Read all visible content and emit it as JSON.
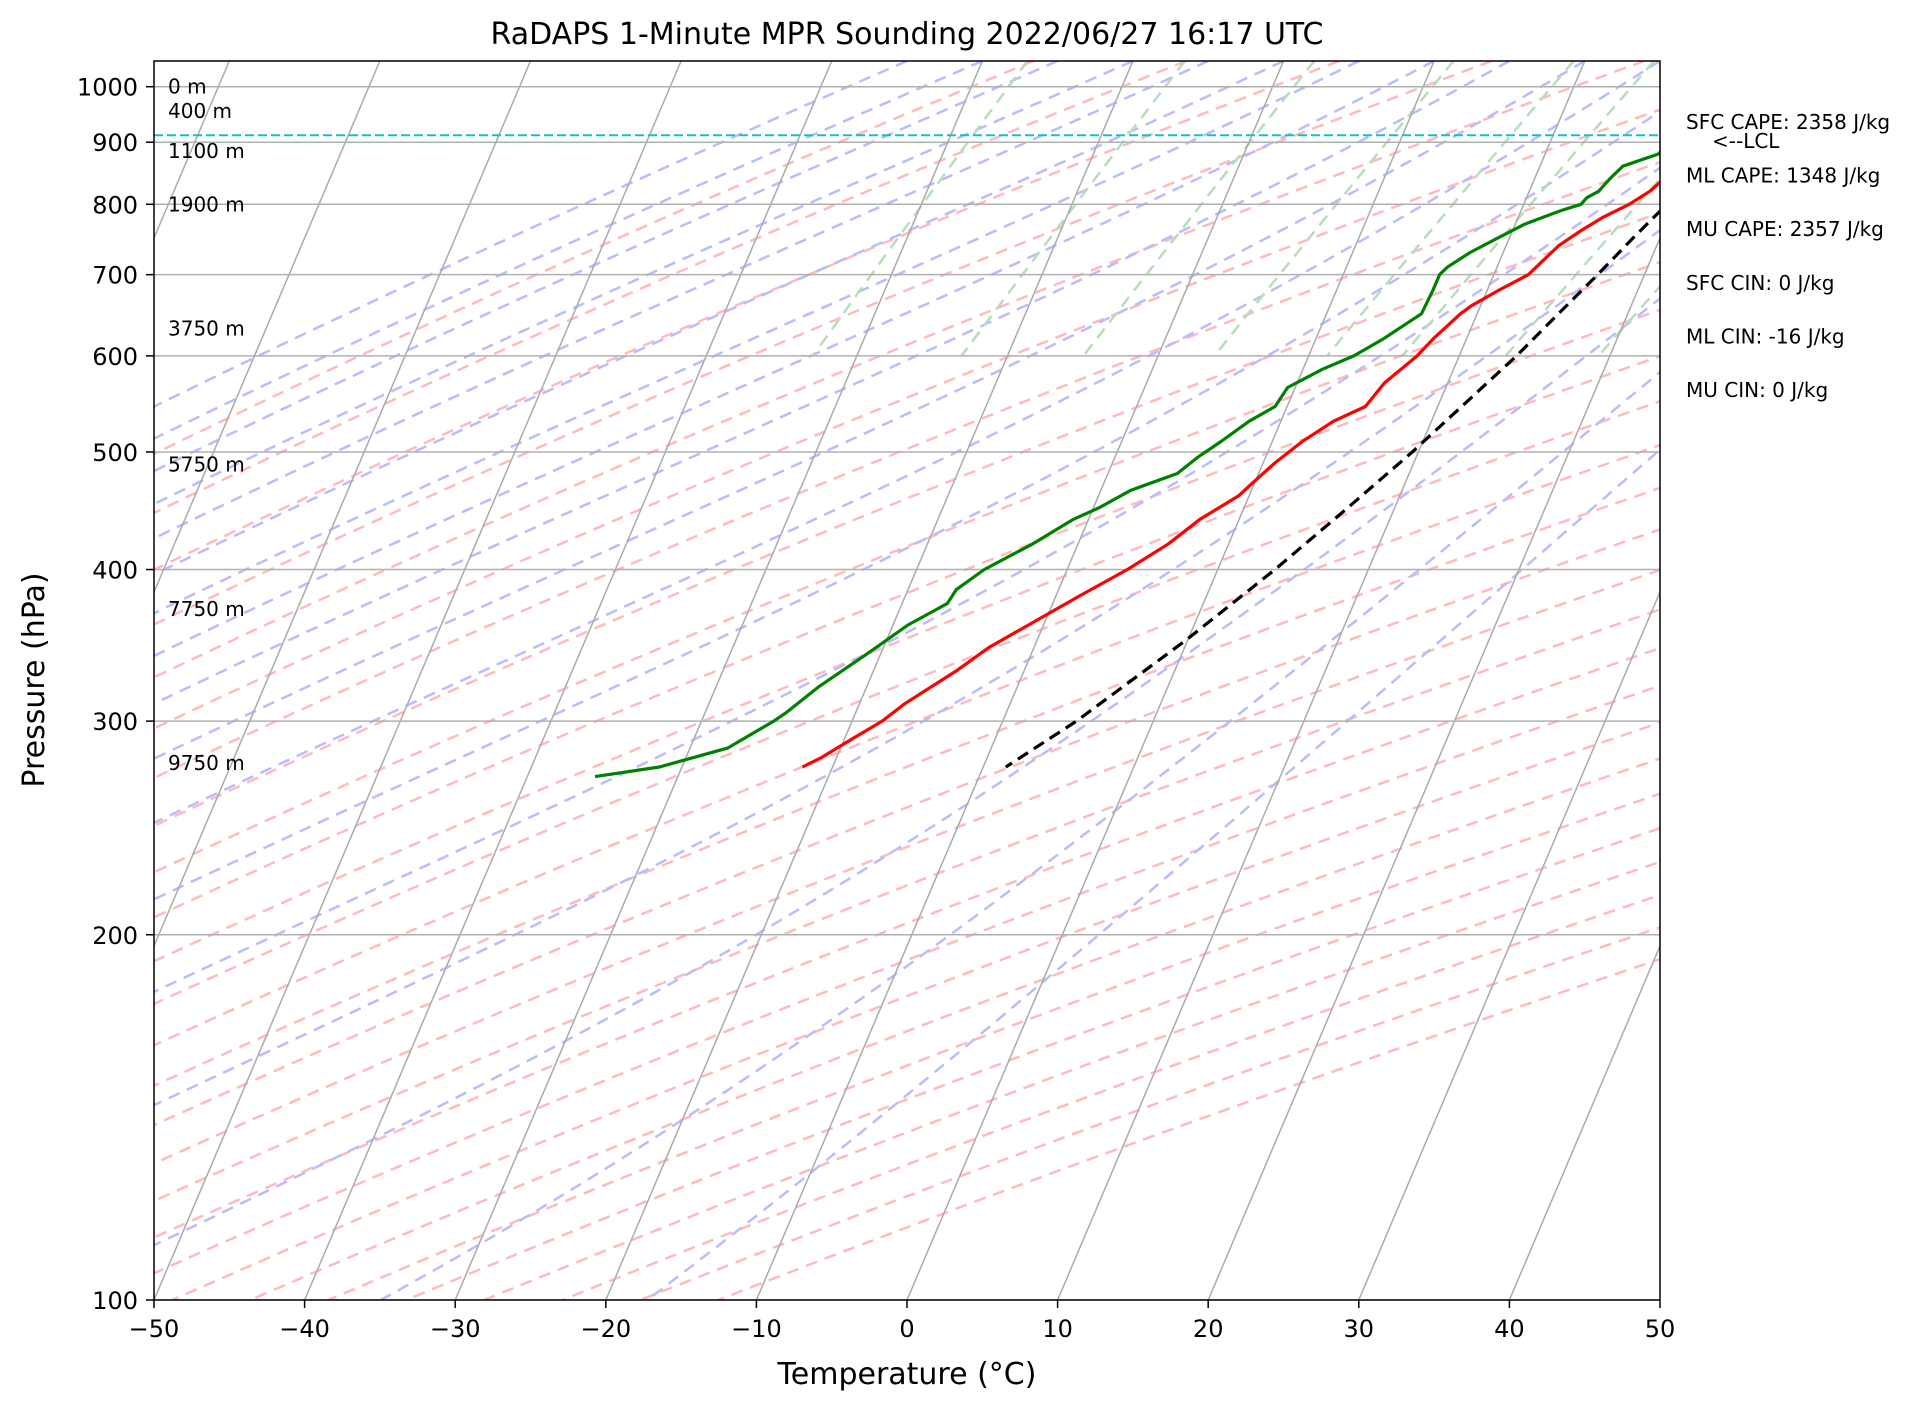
{
  "chart_data": {
    "type": "skew-t",
    "title": "RaDAPS 1-Minute MPR Sounding 2022/06/27 16:17 UTC",
    "xlabel": "Temperature (°C)",
    "ylabel": "Pressure (hPa)",
    "xlim": [
      -50,
      50
    ],
    "ylim": [
      1050,
      100
    ],
    "x_ticks": [
      -50,
      -40,
      -30,
      -20,
      -10,
      0,
      10,
      20,
      30,
      40,
      50
    ],
    "y_ticks": [
      100,
      200,
      300,
      400,
      500,
      600,
      700,
      800,
      900,
      1000
    ],
    "grid": true,
    "series": [
      {
        "color": "#ff0000",
        "points": [
          [
            1000,
            28.2
          ],
          [
            995,
            25.5
          ],
          [
            990,
            23.8
          ],
          [
            980,
            22.8
          ],
          [
            960,
            22.3
          ],
          [
            940,
            22.0
          ],
          [
            920,
            21.6
          ],
          [
            900,
            21.0
          ],
          [
            880,
            20.0
          ],
          [
            860,
            19.3
          ],
          [
            840,
            18.6
          ],
          [
            820,
            18.0
          ],
          [
            800,
            17.0
          ],
          [
            780,
            15.6
          ],
          [
            760,
            14.5
          ],
          [
            740,
            13.5
          ],
          [
            720,
            12.9
          ],
          [
            700,
            12.3
          ],
          [
            680,
            10.8
          ],
          [
            660,
            9.4
          ],
          [
            650,
            8.9
          ],
          [
            620,
            7.8
          ],
          [
            600,
            7.2
          ],
          [
            570,
            5.8
          ],
          [
            545,
            5.2
          ],
          [
            530,
            3.5
          ],
          [
            510,
            2.0
          ],
          [
            490,
            0.8
          ],
          [
            470,
            -0.2
          ],
          [
            460,
            -0.7
          ],
          [
            440,
            -2.6
          ],
          [
            420,
            -4.0
          ],
          [
            400,
            -6.0
          ],
          [
            380,
            -8.5
          ],
          [
            360,
            -11.0
          ],
          [
            345,
            -13.0
          ],
          [
            330,
            -14.5
          ],
          [
            310,
            -17.0
          ],
          [
            300,
            -18.0
          ],
          [
            290,
            -19.5
          ],
          [
            280,
            -21.0
          ],
          [
            275,
            -22.0
          ]
        ]
      },
      {
        "color": "#008000",
        "points": [
          [
            1000,
            22.2
          ],
          [
            995,
            20.6
          ],
          [
            990,
            20.3
          ],
          [
            980,
            20.4
          ],
          [
            970,
            21.0
          ],
          [
            960,
            21.2
          ],
          [
            950,
            20.4
          ],
          [
            940,
            19.7
          ],
          [
            920,
            19.0
          ],
          [
            910,
            18.2
          ],
          [
            900,
            18.0
          ],
          [
            880,
            17.5
          ],
          [
            860,
            15.5
          ],
          [
            840,
            15.0
          ],
          [
            830,
            14.8
          ],
          [
            820,
            14.6
          ],
          [
            810,
            14.0
          ],
          [
            800,
            13.8
          ],
          [
            790,
            12.6
          ],
          [
            770,
            10.6
          ],
          [
            750,
            9.2
          ],
          [
            730,
            7.8
          ],
          [
            710,
            6.7
          ],
          [
            700,
            6.4
          ],
          [
            680,
            6.4
          ],
          [
            650,
            6.3
          ],
          [
            620,
            4.5
          ],
          [
            600,
            3.0
          ],
          [
            585,
            1.3
          ],
          [
            565,
            -0.5
          ],
          [
            545,
            -0.8
          ],
          [
            530,
            -2.1
          ],
          [
            510,
            -3.4
          ],
          [
            495,
            -4.5
          ],
          [
            480,
            -5.4
          ],
          [
            465,
            -8.0
          ],
          [
            450,
            -9.6
          ],
          [
            440,
            -11.0
          ],
          [
            420,
            -13.0
          ],
          [
            400,
            -15.5
          ],
          [
            385,
            -16.8
          ],
          [
            375,
            -17.0
          ],
          [
            360,
            -19.0
          ],
          [
            340,
            -21.0
          ],
          [
            320,
            -23.2
          ],
          [
            305,
            -24.6
          ],
          [
            300,
            -25.2
          ],
          [
            285,
            -27.5
          ],
          [
            275,
            -31.5
          ],
          [
            270,
            -35.5
          ]
        ]
      },
      {
        "color": "#000000",
        "dashed": true,
        "points": [
          [
            1000,
            28.2
          ],
          [
            960,
            25.3
          ],
          [
            920,
            22.5
          ],
          [
            910,
            21.9
          ],
          [
            880,
            21.3
          ],
          [
            850,
            20.6
          ],
          [
            800,
            19.5
          ],
          [
            750,
            18.2
          ],
          [
            700,
            16.9
          ],
          [
            650,
            15.4
          ],
          [
            600,
            13.8
          ],
          [
            550,
            11.8
          ],
          [
            500,
            9.6
          ],
          [
            450,
            6.9
          ],
          [
            400,
            3.8
          ],
          [
            350,
            -0.1
          ],
          [
            300,
            -5.1
          ],
          [
            275,
            -8.5
          ]
        ]
      }
    ],
    "lcl_pressure": 912,
    "lcl_label": "<--LCL",
    "height_labels": [
      {
        "p": 1000,
        "text": "0 m"
      },
      {
        "p": 955,
        "text": "400 m"
      },
      {
        "p": 885,
        "text": "1100 m"
      },
      {
        "p": 800,
        "text": "1900 m"
      },
      {
        "p": 632,
        "text": "3750 m"
      },
      {
        "p": 488,
        "text": "5750 m"
      },
      {
        "p": 371,
        "text": "7750 m"
      },
      {
        "p": 277,
        "text": "9750 m"
      }
    ],
    "parameters": [
      "SFC CAPE: 2358 J/kg",
      "ML CAPE: 1348 J/kg",
      "MU CAPE: 2357 J/kg",
      "SFC CIN: 0 J/kg",
      "ML CIN: -16 J/kg",
      "MU CIN: 0 J/kg"
    ],
    "background_lines": {
      "isotherm_color": "#aaaaaa",
      "dry_adiabat_color": "#ffbbbb",
      "moist_adiabat_color": "#bbbbff",
      "mixing_ratio_color": "#b8ddb8"
    }
  }
}
